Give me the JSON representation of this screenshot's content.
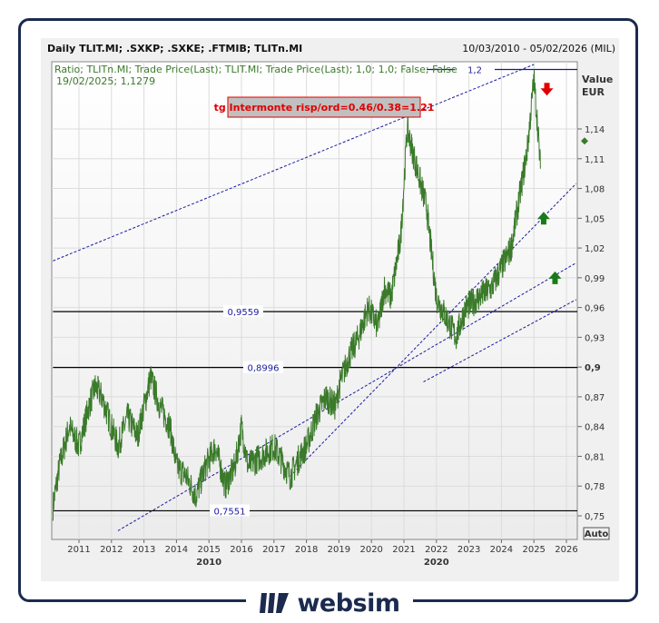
{
  "header": {
    "title": "Daily TLIT.MI; .SXKP; .SXKE; .FTMIB; TLITn.MI",
    "date_range": "10/03/2010 - 05/02/2026 (MIL)"
  },
  "legend": {
    "line1": "Ratio; TLITn.MI; Trade Price(Last); TLIT.MI; Trade Price(Last);  1,0; 1,0; False; False",
    "line2": "19/02/2025; 1,1279"
  },
  "annotation": "tg Intermonte risp/ord=0.46/0.38=1.21",
  "axis": {
    "unit1": "Value",
    "unit2": "EUR",
    "auto": "Auto"
  },
  "footer": {
    "brand": "websim"
  },
  "colors": {
    "series": "#3a7a2a",
    "trend": "#1a1aa0",
    "hline": "#000000",
    "label_bg": "#c0c0c0",
    "label_text": "#e00000",
    "down_arrow": "#e00000",
    "up_arrow": "#1a7a1a",
    "brand": "#1b2a4e"
  },
  "chart_data": {
    "type": "line",
    "title": "Daily TLIT.MI; .SXKP; .SXKE; .FTMIB; TLITn.MI",
    "xlabel": "",
    "ylabel": "Value EUR",
    "xlim": [
      2010.2,
      2026.3
    ],
    "ylim": [
      0.735,
      1.215
    ],
    "grid": true,
    "x_ticks": [
      "2011",
      "2012",
      "2013",
      "2014",
      "2015",
      "2016",
      "2017",
      "2018",
      "2019",
      "2020",
      "2021",
      "2022",
      "2023",
      "2024",
      "2025",
      "2026"
    ],
    "x_tick_values": [
      2011,
      2012,
      2013,
      2014,
      2015,
      2016,
      2017,
      2018,
      2019,
      2020,
      2021,
      2022,
      2023,
      2024,
      2025,
      2026
    ],
    "decade_labels": [
      {
        "text": "2010",
        "at": 2015
      },
      {
        "text": "2020",
        "at": 2022
      }
    ],
    "y_ticks": [
      "0,75",
      "0,78",
      "0,81",
      "0,84",
      "0,87",
      "0,9",
      "0,93",
      "0,96",
      "0,99",
      "1,02",
      "1,05",
      "1,08",
      "1,11",
      "1,14"
    ],
    "y_tick_values": [
      0.75,
      0.78,
      0.81,
      0.84,
      0.87,
      0.9,
      0.93,
      0.96,
      0.99,
      1.02,
      1.05,
      1.08,
      1.11,
      1.14
    ],
    "series": [
      {
        "name": "Ratio TLITn.MI / TLIT.MI",
        "x": [
          2010.2,
          2010.4,
          2010.7,
          2011.0,
          2011.3,
          2011.5,
          2011.7,
          2012.0,
          2012.2,
          2012.5,
          2012.8,
          2013.0,
          2013.2,
          2013.5,
          2013.8,
          2014.0,
          2014.3,
          2014.6,
          2014.9,
          2015.2,
          2015.5,
          2015.8,
          2016.0,
          2016.2,
          2016.6,
          2017.0,
          2017.5,
          2017.8,
          2018.0,
          2018.3,
          2018.6,
          2018.9,
          2019.0,
          2019.3,
          2019.6,
          2019.9,
          2020.2,
          2020.4,
          2020.6,
          2020.9,
          2021.1,
          2021.4,
          2021.7,
          2022.0,
          2022.3,
          2022.6,
          2022.9,
          2023.3,
          2023.7,
          2024.0,
          2024.3,
          2024.6,
          2024.8,
          2025.0,
          2025.1,
          2025.2
        ],
        "y": [
          0.76,
          0.8,
          0.84,
          0.82,
          0.86,
          0.88,
          0.87,
          0.84,
          0.82,
          0.85,
          0.83,
          0.86,
          0.89,
          0.86,
          0.84,
          0.8,
          0.79,
          0.77,
          0.8,
          0.82,
          0.78,
          0.8,
          0.84,
          0.8,
          0.81,
          0.82,
          0.79,
          0.81,
          0.82,
          0.85,
          0.87,
          0.86,
          0.88,
          0.91,
          0.93,
          0.96,
          0.94,
          0.98,
          0.97,
          1.03,
          1.14,
          1.1,
          1.06,
          0.97,
          0.95,
          0.93,
          0.96,
          0.97,
          0.98,
          1.0,
          1.02,
          1.08,
          1.12,
          1.19,
          1.15,
          1.1
        ]
      }
    ],
    "last_value": {
      "date": "19/02/2025",
      "value": 1.1279
    },
    "horizontal_lines": [
      {
        "value": 1.2,
        "label": "1,2",
        "from": 2021.7
      },
      {
        "value": 0.9559,
        "label": "0,9559",
        "from": 2010.2
      },
      {
        "value": 0.8996,
        "label": "0,8996",
        "from": 2010.2
      },
      {
        "value": 0.7551,
        "label": "0,7551",
        "from": 2010.2
      }
    ],
    "trend_lines": [
      {
        "x": [
          2010.2,
          2025.0
        ],
        "y": [
          1.007,
          1.205
        ]
      },
      {
        "x": [
          2012.2,
          2026.3
        ],
        "y": [
          0.735,
          1.005
        ]
      },
      {
        "x": [
          2017.5,
          2026.3
        ],
        "y": [
          0.79,
          1.085
        ]
      },
      {
        "x": [
          2021.6,
          2026.3
        ],
        "y": [
          0.885,
          0.968
        ]
      }
    ],
    "signals": [
      {
        "type": "down",
        "x": 2025.4,
        "y": 1.18
      },
      {
        "type": "up",
        "x": 2025.3,
        "y": 1.05
      },
      {
        "type": "up",
        "x": 2025.65,
        "y": 0.99
      }
    ]
  }
}
